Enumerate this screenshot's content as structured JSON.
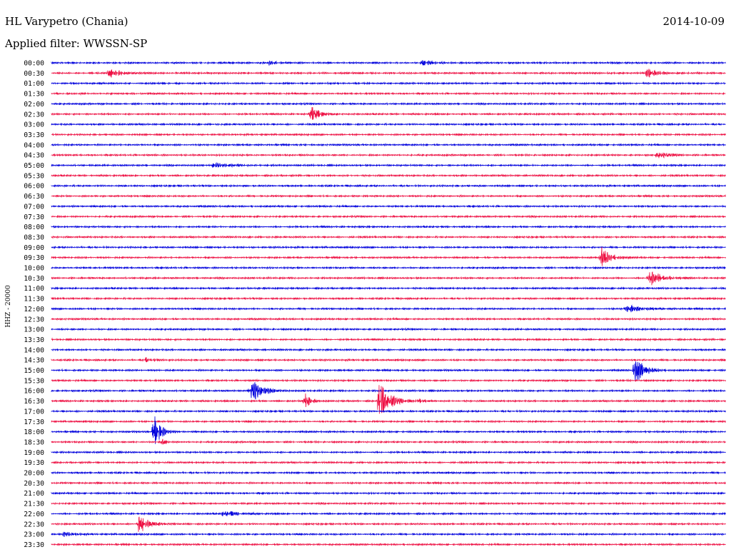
{
  "header": {
    "title": "HL Varypetro (Chania)",
    "date": "2014-10-09",
    "filter": "Applied filter: WWSSN-SP"
  },
  "chart_data": {
    "type": "line",
    "title": "HL Varypetro (Chania)",
    "ylabel": "HHZ - 20000",
    "colors": [
      "#0000dd",
      "#ee1144"
    ],
    "rows": [
      "00:00",
      "00:30",
      "01:00",
      "01:30",
      "02:00",
      "02:30",
      "03:00",
      "03:30",
      "04:00",
      "04:30",
      "05:00",
      "05:30",
      "06:00",
      "06:30",
      "07:00",
      "07:30",
      "08:00",
      "08:30",
      "09:00",
      "09:30",
      "10:00",
      "10:30",
      "11:00",
      "11:30",
      "12:00",
      "12:30",
      "13:00",
      "13:30",
      "14:00",
      "14:30",
      "15:00",
      "15:30",
      "16:00",
      "16:30",
      "17:00",
      "17:30",
      "18:00",
      "18:30",
      "19:00",
      "19:30",
      "20:00",
      "20:30",
      "21:00",
      "21:30",
      "22:00",
      "22:30",
      "23:00",
      "23:30"
    ],
    "row_minutes": 30,
    "events": [
      {
        "row": 0,
        "minute": 9.7,
        "amp": 3,
        "dur": 0.6
      },
      {
        "row": 0,
        "minute": 16.5,
        "amp": 4,
        "dur": 1.0
      },
      {
        "row": 1,
        "minute": 2.6,
        "amp": 6,
        "dur": 1.0
      },
      {
        "row": 1,
        "minute": 26.5,
        "amp": 6,
        "dur": 1.2
      },
      {
        "row": 5,
        "minute": 11.6,
        "amp": 10,
        "dur": 0.8
      },
      {
        "row": 9,
        "minute": 27.0,
        "amp": 4,
        "dur": 1.0
      },
      {
        "row": 10,
        "minute": 7.2,
        "amp": 3,
        "dur": 1.5
      },
      {
        "row": 19,
        "minute": 24.5,
        "amp": 14,
        "dur": 0.8
      },
      {
        "row": 21,
        "minute": 26.6,
        "amp": 12,
        "dur": 1.0
      },
      {
        "row": 24,
        "minute": 25.6,
        "amp": 6,
        "dur": 1.2
      },
      {
        "row": 29,
        "minute": 4.2,
        "amp": 3,
        "dur": 0.8
      },
      {
        "row": 30,
        "minute": 26.0,
        "amp": 20,
        "dur": 0.8
      },
      {
        "row": 32,
        "minute": 8.9,
        "amp": 22,
        "dur": 0.8
      },
      {
        "row": 33,
        "minute": 11.3,
        "amp": 12,
        "dur": 0.4
      },
      {
        "row": 33,
        "minute": 14.6,
        "amp": 26,
        "dur": 1.0
      },
      {
        "row": 33,
        "minute": 16.4,
        "amp": 3,
        "dur": 0.5
      },
      {
        "row": 36,
        "minute": 4.6,
        "amp": 30,
        "dur": 0.5
      },
      {
        "row": 37,
        "minute": 5.0,
        "amp": 5,
        "dur": 0.3
      },
      {
        "row": 44,
        "minute": 7.7,
        "amp": 4,
        "dur": 1.2
      },
      {
        "row": 45,
        "minute": 3.9,
        "amp": 14,
        "dur": 0.8
      },
      {
        "row": 46,
        "minute": 0.6,
        "amp": 3,
        "dur": 0.8
      }
    ]
  }
}
